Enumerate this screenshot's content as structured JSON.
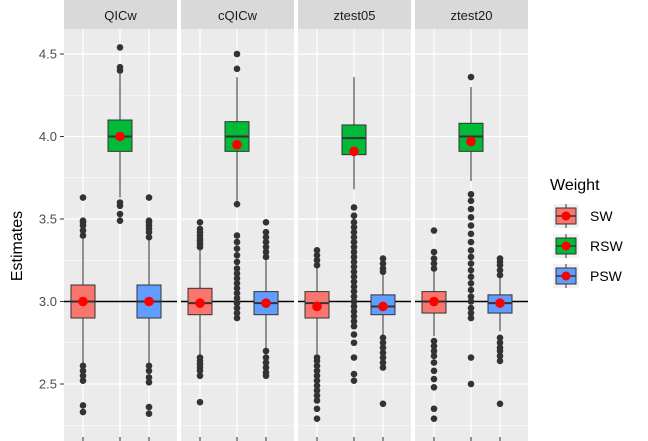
{
  "chart_data": {
    "type": "boxplot",
    "ylabel": "Estimates",
    "ylim": [
      2.25,
      4.62
    ],
    "yticks": [
      2.5,
      3.0,
      3.5,
      4.0,
      4.5
    ],
    "ytick_labels": [
      "2.5",
      "3.0",
      "3.5",
      "4.0",
      "4.5"
    ],
    "reference_line": 3.0,
    "legend_title": "Weight",
    "legend_position": "right",
    "groups": [
      "SW",
      "RSW",
      "PSW"
    ],
    "colors": {
      "SW": "#F8766D",
      "RSW": "#00BA38",
      "PSW": "#619CFF",
      "mean": "#FF0000",
      "outlier": "#333333",
      "panel": "#EBEBEB",
      "strip": "#D9D9D9",
      "grid": "#FFFFFF"
    },
    "panels": [
      {
        "name": "QICw",
        "boxes": [
          {
            "group": "SW",
            "q1": 2.9,
            "median": 3.0,
            "q3": 3.1,
            "whisker_low": 2.62,
            "whisker_high": 3.38,
            "mean": 3.0,
            "outliers": [
              2.33,
              2.37,
              2.52,
              2.55,
              2.58,
              2.61,
              3.4,
              3.43,
              3.46,
              3.48,
              3.49,
              3.63
            ]
          },
          {
            "group": "RSW",
            "q1": 3.91,
            "median": 4.0,
            "q3": 4.1,
            "whisker_low": 3.63,
            "whisker_high": 4.38,
            "mean": 4.0,
            "outliers": [
              3.49,
              3.53,
              3.58,
              3.6,
              4.4,
              4.42,
              4.54
            ]
          },
          {
            "group": "PSW",
            "q1": 2.9,
            "median": 3.0,
            "q3": 3.1,
            "whisker_low": 2.62,
            "whisker_high": 3.38,
            "mean": 3.0,
            "outliers": [
              2.32,
              2.36,
              2.51,
              2.54,
              2.58,
              2.61,
              3.39,
              3.42,
              3.44,
              3.46,
              3.48,
              3.49,
              3.63
            ]
          }
        ]
      },
      {
        "name": "cQICw",
        "boxes": [
          {
            "group": "SW",
            "q1": 2.92,
            "median": 2.99,
            "q3": 3.08,
            "whisker_low": 2.68,
            "whisker_high": 3.32,
            "mean": 2.99,
            "outliers": [
              2.39,
              2.55,
              2.58,
              2.6,
              2.62,
              2.64,
              2.66,
              3.33,
              3.35,
              3.37,
              3.38,
              3.4,
              3.42,
              3.44,
              3.48
            ]
          },
          {
            "group": "RSW",
            "q1": 3.91,
            "median": 4.0,
            "q3": 4.09,
            "whisker_low": 3.61,
            "whisker_high": 4.36,
            "mean": 3.95,
            "outliers": [
              2.9,
              2.93,
              2.96,
              2.99,
              3.02,
              3.05,
              3.08,
              3.11,
              3.14,
              3.17,
              3.2,
              3.24,
              3.28,
              3.32,
              3.36,
              3.4,
              3.59,
              4.41,
              4.5
            ]
          },
          {
            "group": "PSW",
            "q1": 2.92,
            "median": 2.99,
            "q3": 3.06,
            "whisker_low": 2.71,
            "whisker_high": 3.25,
            "mean": 2.99,
            "outliers": [
              2.55,
              2.57,
              2.6,
              2.63,
              2.66,
              2.7,
              3.27,
              3.3,
              3.33,
              3.36,
              3.39,
              3.42,
              3.48
            ]
          }
        ]
      },
      {
        "name": "ztest05",
        "boxes": [
          {
            "group": "SW",
            "q1": 2.9,
            "median": 2.99,
            "q3": 3.06,
            "whisker_low": 2.68,
            "whisker_high": 3.2,
            "mean": 2.97,
            "outliers": [
              2.29,
              2.35,
              2.4,
              2.43,
              2.46,
              2.49,
              2.52,
              2.55,
              2.58,
              2.61,
              2.64,
              2.66,
              3.22,
              3.25,
              3.28,
              3.31
            ]
          },
          {
            "group": "RSW",
            "q1": 3.89,
            "median": 3.99,
            "q3": 4.07,
            "whisker_low": 3.68,
            "whisker_high": 4.36,
            "mean": 3.91,
            "outliers": [
              2.52,
              2.56,
              2.66,
              2.75,
              2.8,
              2.85,
              2.88,
              2.91,
              2.94,
              2.97,
              3.0,
              3.03,
              3.06,
              3.09,
              3.12,
              3.15,
              3.18,
              3.21,
              3.24,
              3.27,
              3.3,
              3.33,
              3.36,
              3.39,
              3.42,
              3.45,
              3.48,
              3.52,
              3.57
            ]
          },
          {
            "group": "PSW",
            "q1": 2.92,
            "median": 2.97,
            "q3": 3.04,
            "whisker_low": 2.8,
            "whisker_high": 3.16,
            "mean": 2.97,
            "outliers": [
              2.38,
              2.6,
              2.63,
              2.66,
              2.69,
              2.72,
              2.75,
              2.78,
              3.18,
              3.2,
              3.23,
              3.26
            ]
          }
        ]
      },
      {
        "name": "ztest20",
        "boxes": [
          {
            "group": "SW",
            "q1": 2.93,
            "median": 3.0,
            "q3": 3.06,
            "whisker_low": 2.79,
            "whisker_high": 3.18,
            "mean": 3.0,
            "outliers": [
              2.29,
              2.35,
              2.48,
              2.53,
              2.58,
              2.63,
              2.67,
              2.7,
              2.73,
              2.76,
              3.2,
              3.23,
              3.26,
              3.3,
              3.43
            ]
          },
          {
            "group": "RSW",
            "q1": 3.91,
            "median": 4.0,
            "q3": 4.08,
            "whisker_low": 3.73,
            "whisker_high": 4.3,
            "mean": 3.97,
            "outliers": [
              2.5,
              2.66,
              2.9,
              2.93,
              2.96,
              3.0,
              3.03,
              3.07,
              3.11,
              3.15,
              3.19,
              3.23,
              3.27,
              3.31,
              3.36,
              3.41,
              3.46,
              3.51,
              3.56,
              3.61,
              3.65,
              4.36
            ]
          },
          {
            "group": "PSW",
            "q1": 2.93,
            "median": 2.99,
            "q3": 3.04,
            "whisker_low": 2.82,
            "whisker_high": 3.14,
            "mean": 2.99,
            "outliers": [
              2.38,
              2.64,
              2.67,
              2.7,
              2.72,
              2.75,
              2.78,
              3.16,
              3.19,
              3.22,
              3.24,
              3.26
            ]
          }
        ]
      }
    ]
  }
}
